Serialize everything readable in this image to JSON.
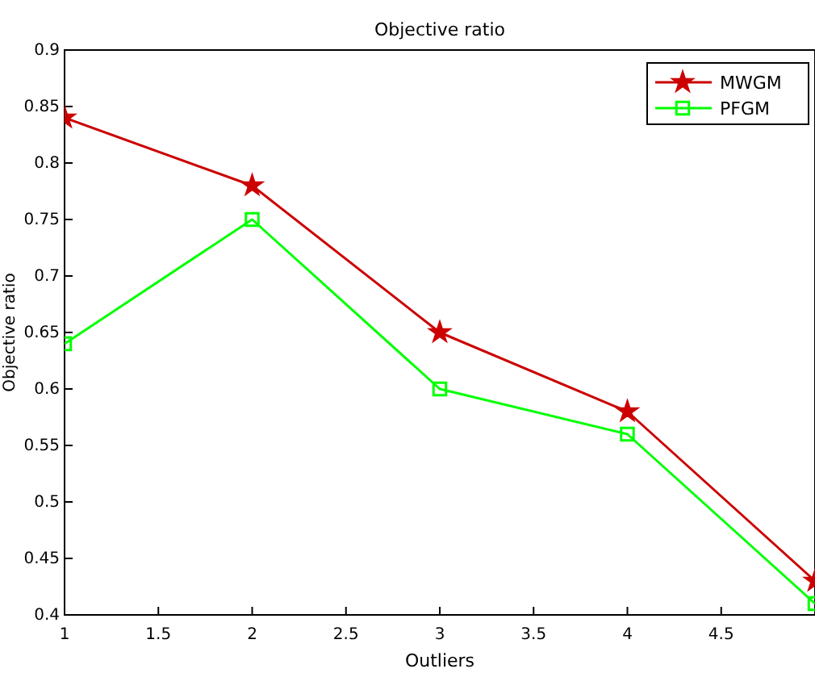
{
  "chart_data": {
    "type": "line",
    "title": "Objective ratio",
    "xlabel": "Outliers",
    "ylabel": "Objective ratio",
    "x": [
      1,
      2,
      3,
      4,
      5
    ],
    "series": [
      {
        "name": "MWGM",
        "color": "#cc0000",
        "marker": "star",
        "values": [
          0.84,
          0.78,
          0.65,
          0.58,
          0.43
        ]
      },
      {
        "name": "PFGM",
        "color": "#00ff00",
        "marker": "square",
        "values": [
          0.64,
          0.75,
          0.6,
          0.56,
          0.41
        ]
      }
    ],
    "xlim": [
      1,
      5
    ],
    "ylim": [
      0.4,
      0.9
    ],
    "xticks": [
      1,
      1.5,
      2,
      2.5,
      3,
      3.5,
      4,
      4.5
    ],
    "yticks": [
      0.4,
      0.45,
      0.5,
      0.55,
      0.6,
      0.65,
      0.7,
      0.75,
      0.8,
      0.85,
      0.9
    ],
    "grid": false,
    "legend": "top right"
  }
}
